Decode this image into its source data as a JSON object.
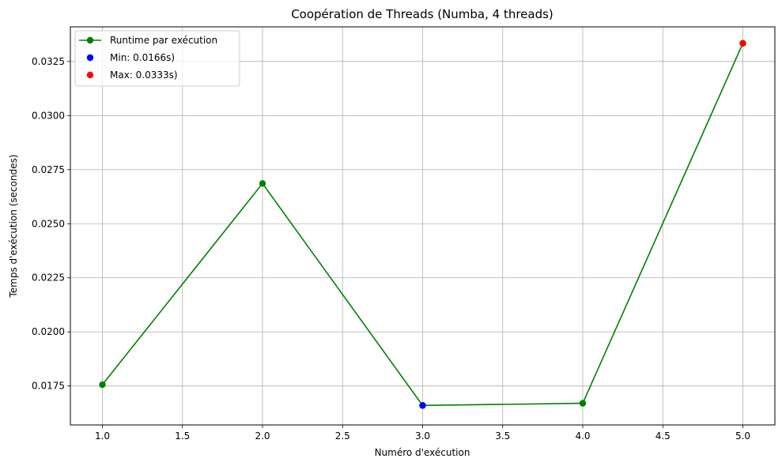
{
  "chart_data": {
    "type": "line",
    "title": "Coopération de Threads (Numba, 4 threads)",
    "xlabel": "Numéro d'exécution",
    "ylabel": "Temps d'exécution (secondes)",
    "xlim": [
      0.8,
      5.2
    ],
    "ylim": [
      0.0157,
      0.0341
    ],
    "xticks": [
      1.0,
      1.5,
      2.0,
      2.5,
      3.0,
      3.5,
      4.0,
      4.5,
      5.0
    ],
    "xtick_labels": [
      "1.0",
      "1.5",
      "2.0",
      "2.5",
      "3.0",
      "3.5",
      "4.0",
      "4.5",
      "5.0"
    ],
    "yticks": [
      0.0175,
      0.02,
      0.0225,
      0.025,
      0.0275,
      0.03,
      0.0325
    ],
    "ytick_labels": [
      "0.0175",
      "0.0200",
      "0.0225",
      "0.0250",
      "0.0275",
      "0.0300",
      "0.0325"
    ],
    "grid": true,
    "legend_position": "top-left",
    "series": [
      {
        "name": "Runtime par exécution",
        "kind": "line",
        "color": "#008000",
        "x": [
          1,
          2,
          3,
          4,
          5
        ],
        "y": [
          0.01756,
          0.02686,
          0.0166,
          0.0167,
          0.03334
        ]
      },
      {
        "name": "Min: 0.0166s)",
        "kind": "scatter",
        "color": "#0000ff",
        "x": [
          3
        ],
        "y": [
          0.0166
        ]
      },
      {
        "name": "Max: 0.0333s)",
        "kind": "scatter",
        "color": "#ff0000",
        "x": [
          5
        ],
        "y": [
          0.03334
        ]
      }
    ]
  }
}
